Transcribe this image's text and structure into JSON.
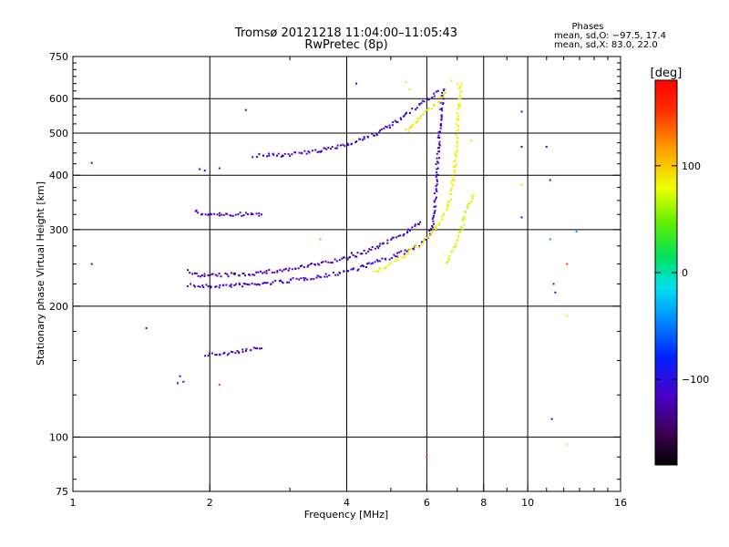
{
  "chart_data": {
    "type": "scatter",
    "title_line1": "Tromsø 20121218 11:04:00–11:05:43",
    "title_line2": "RwPretec (8p)",
    "phases": {
      "heading": "Phases",
      "line1": "mean, sd,O: −97.5, 17.4",
      "line2": "mean, sd,X:  83.0, 22.0"
    },
    "xlabel": "Frequency [MHz]",
    "ylabel": "Stationary phase Virtual Height [km]",
    "x_scale": "log",
    "y_scale": "log",
    "xlim": [
      1,
      16
    ],
    "ylim": [
      75,
      750
    ],
    "x_ticks": [
      1,
      2,
      4,
      6,
      8,
      10,
      16
    ],
    "x_tick_labels": [
      "1",
      "2",
      "4",
      "6",
      "8",
      "10",
      "16"
    ],
    "x_minor_ticks": [
      3,
      5,
      7,
      9,
      11,
      12,
      13,
      14,
      15
    ],
    "y_ticks": [
      75,
      100,
      200,
      300,
      400,
      500,
      600,
      750
    ],
    "y_tick_labels": [
      "75",
      "100",
      "200",
      "300",
      "400",
      "500",
      "600",
      "750"
    ],
    "y_minor_ticks": [
      80,
      90,
      125,
      150,
      175,
      225,
      250,
      275,
      325,
      350,
      375,
      425,
      450,
      475,
      525,
      550,
      575,
      625,
      650,
      675,
      700,
      725
    ],
    "grid": true,
    "colorbar": {
      "label": "[deg]",
      "range": [
        -180,
        180
      ],
      "ticks": [
        100,
        0,
        -100
      ],
      "tick_labels": [
        "100",
        "0",
        "−100"
      ],
      "colormap": "rainbow"
    },
    "series": [
      {
        "kind": "trace",
        "phase": -110,
        "points": [
          [
            1.8,
            224
          ],
          [
            1.9,
            222
          ],
          [
            2.0,
            222
          ],
          [
            2.2,
            223
          ],
          [
            2.4,
            224
          ],
          [
            2.6,
            225
          ],
          [
            2.8,
            227
          ],
          [
            3.0,
            229
          ],
          [
            3.2,
            231
          ],
          [
            3.4,
            233
          ],
          [
            3.6,
            235
          ],
          [
            3.8,
            238
          ],
          [
            4.0,
            241
          ],
          [
            4.2,
            244
          ],
          [
            4.4,
            248
          ],
          [
            4.6,
            252
          ],
          [
            4.8,
            256
          ],
          [
            5.0,
            259
          ],
          [
            5.2,
            263
          ],
          [
            5.4,
            267
          ],
          [
            5.6,
            272
          ],
          [
            5.8,
            277
          ],
          [
            6.0,
            285
          ],
          [
            6.1,
            292
          ],
          [
            6.15,
            302
          ],
          [
            6.2,
            320
          ],
          [
            6.25,
            350
          ],
          [
            6.3,
            390
          ],
          [
            6.35,
            440
          ],
          [
            6.4,
            500
          ],
          [
            6.45,
            560
          ],
          [
            6.5,
            610
          ],
          [
            6.55,
            630
          ]
        ]
      },
      {
        "kind": "trace",
        "phase": -120,
        "points": [
          [
            1.8,
            240
          ],
          [
            1.9,
            236
          ],
          [
            2.0,
            235
          ],
          [
            2.2,
            236
          ],
          [
            2.4,
            237
          ],
          [
            2.6,
            239
          ],
          [
            2.8,
            241
          ],
          [
            3.0,
            243
          ],
          [
            3.2,
            246
          ],
          [
            3.4,
            249
          ],
          [
            3.6,
            252
          ],
          [
            3.8,
            255
          ],
          [
            4.0,
            258
          ],
          [
            4.2,
            262
          ],
          [
            4.4,
            267
          ],
          [
            4.6,
            272
          ],
          [
            4.8,
            278
          ],
          [
            5.0,
            284
          ],
          [
            5.2,
            290
          ],
          [
            5.4,
            296
          ],
          [
            5.6,
            302
          ],
          [
            5.8,
            312
          ]
        ]
      },
      {
        "kind": "trace",
        "phase": -110,
        "points": [
          [
            2.5,
            443
          ],
          [
            2.8,
            445
          ],
          [
            3.0,
            447
          ],
          [
            3.2,
            450
          ],
          [
            3.4,
            453
          ],
          [
            3.6,
            458
          ],
          [
            3.8,
            465
          ],
          [
            4.0,
            472
          ],
          [
            4.2,
            480
          ],
          [
            4.4,
            488
          ],
          [
            4.6,
            497
          ],
          [
            4.8,
            508
          ],
          [
            5.0,
            520
          ],
          [
            5.2,
            535
          ],
          [
            5.4,
            550
          ],
          [
            5.6,
            565
          ],
          [
            5.8,
            580
          ],
          [
            6.0,
            595
          ],
          [
            6.2,
            610
          ],
          [
            6.35,
            625
          ]
        ]
      },
      {
        "kind": "trace",
        "phase": 85,
        "points": [
          [
            4.6,
            240
          ],
          [
            4.8,
            245
          ],
          [
            5.0,
            250
          ],
          [
            5.2,
            256
          ],
          [
            5.4,
            263
          ],
          [
            5.6,
            270
          ],
          [
            5.8,
            278
          ],
          [
            6.0,
            287
          ],
          [
            6.2,
            297
          ],
          [
            6.4,
            310
          ],
          [
            6.6,
            330
          ],
          [
            6.75,
            355
          ],
          [
            6.85,
            390
          ],
          [
            6.95,
            440
          ],
          [
            7.0,
            500
          ],
          [
            7.05,
            560
          ],
          [
            7.1,
            620
          ],
          [
            7.15,
            650
          ]
        ]
      },
      {
        "kind": "trace",
        "phase": 90,
        "points": [
          [
            5.4,
            505
          ],
          [
            5.6,
            525
          ],
          [
            5.8,
            545
          ],
          [
            6.0,
            560
          ],
          [
            6.2,
            575
          ],
          [
            6.4,
            600
          ],
          [
            6.6,
            620
          ]
        ]
      },
      {
        "kind": "trace",
        "phase": -115,
        "points": [
          [
            1.85,
            330
          ],
          [
            1.95,
            325
          ],
          [
            2.05,
            325
          ],
          [
            2.15,
            325
          ],
          [
            2.5,
            325
          ],
          [
            2.6,
            325
          ]
        ]
      },
      {
        "kind": "trace",
        "phase": -115,
        "points": [
          [
            1.95,
            155
          ],
          [
            2.0,
            155
          ],
          [
            2.05,
            155
          ],
          [
            2.1,
            156
          ],
          [
            2.2,
            156
          ],
          [
            2.4,
            158
          ],
          [
            2.6,
            160
          ]
        ]
      },
      {
        "kind": "trace",
        "phase": 70,
        "points": [
          [
            6.6,
            250
          ],
          [
            6.8,
            265
          ],
          [
            7.0,
            285
          ],
          [
            7.2,
            310
          ],
          [
            7.4,
            340
          ],
          [
            7.6,
            360
          ]
        ]
      },
      {
        "kind": "point",
        "phase": -110,
        "points": [
          [
            1.1,
            427
          ],
          [
            1.1,
            250
          ],
          [
            1.7,
            133
          ],
          [
            1.75,
            134
          ],
          [
            1.72,
            138
          ],
          [
            1.45,
            178
          ],
          [
            2.4,
            565
          ],
          [
            4.2,
            650
          ],
          [
            9.7,
            560
          ],
          [
            9.7,
            465
          ],
          [
            9.7,
            320
          ],
          [
            11.0,
            465
          ],
          [
            11.2,
            390
          ],
          [
            11.3,
            110
          ],
          [
            11.5,
            215
          ],
          [
            11.4,
            225
          ],
          [
            1.9,
            413
          ],
          [
            1.95,
            410
          ],
          [
            2.1,
            415
          ]
        ]
      },
      {
        "kind": "point",
        "phase": 90,
        "points": [
          [
            5.4,
            655
          ],
          [
            5.5,
            630
          ],
          [
            6.8,
            660
          ],
          [
            7.0,
            650
          ],
          [
            7.5,
            480
          ],
          [
            9.7,
            380
          ],
          [
            12.2,
            190
          ],
          [
            12.2,
            96
          ]
        ]
      },
      {
        "kind": "point",
        "phase": 150,
        "points": [
          [
            2.1,
            132
          ],
          [
            6.0,
            90
          ],
          [
            12.2,
            250
          ]
        ]
      },
      {
        "kind": "point",
        "phase": 40,
        "points": [
          [
            3.5,
            285
          ]
        ]
      },
      {
        "kind": "point",
        "phase": -40,
        "points": [
          [
            11.2,
            285
          ],
          [
            12.8,
            297
          ]
        ]
      },
      {
        "kind": "point",
        "phase": -180,
        "points": [
          [
            4.0,
            258
          ],
          [
            4.1,
            265
          ]
        ]
      }
    ]
  }
}
